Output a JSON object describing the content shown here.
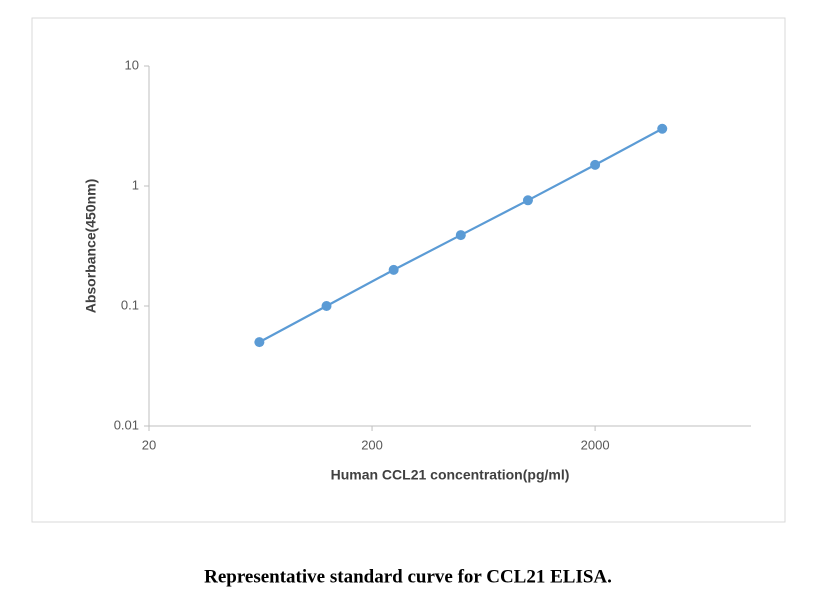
{
  "chart_data": {
    "type": "line",
    "x_label": "Human CCL21 concentration(pg/ml)",
    "y_label": "Absorbance(450nm)",
    "caption": "Representative standard curve for CCL21 ELISA.",
    "x": [
      62.5,
      125,
      250,
      500,
      1000,
      2000,
      4000
    ],
    "series": [
      {
        "color": "#5b9bd5",
        "values": [
          0.05,
          0.1,
          0.2,
          0.39,
          0.76,
          1.5,
          3.0
        ]
      }
    ],
    "x_scale": "log",
    "y_scale": "log",
    "xlim": [
      20,
      10000
    ],
    "xticks": [
      20,
      200,
      2000
    ],
    "ylim": [
      0.01,
      10
    ],
    "yticks": [
      0.01,
      0.1,
      1,
      10
    ],
    "markers": true
  }
}
